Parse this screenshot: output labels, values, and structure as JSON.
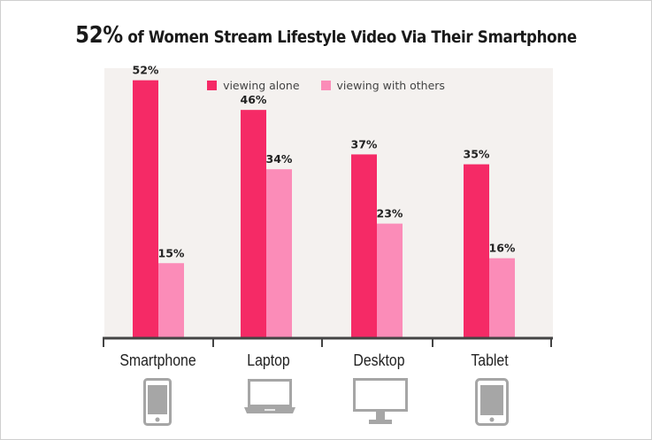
{
  "title": {
    "highlight": "52%",
    "rest": "of Women Stream Lifestyle Video Via Their Smartphone"
  },
  "colors": {
    "alone": "#f52a66",
    "others": "#fb8cb8",
    "axis": "#444444",
    "plot_bg": "#f4f1ef",
    "icon": "#a6a6a6"
  },
  "chart_data": {
    "type": "bar",
    "categories": [
      "Smartphone",
      "Laptop",
      "Desktop",
      "Tablet"
    ],
    "series": [
      {
        "name": "viewing alone",
        "values": [
          52,
          46,
          37,
          35
        ]
      },
      {
        "name": "viewing with others",
        "values": [
          15,
          34,
          23,
          16
        ]
      }
    ],
    "value_labels": [
      [
        "52%",
        "46%",
        "37%",
        "35%"
      ],
      [
        "15%",
        "34%",
        "23%",
        "16%"
      ]
    ],
    "ylim": [
      0,
      60
    ],
    "legend_position": "top-center",
    "grid": false
  },
  "devices": [
    "smartphone-icon",
    "laptop-icon",
    "desktop-icon",
    "tablet-icon"
  ]
}
